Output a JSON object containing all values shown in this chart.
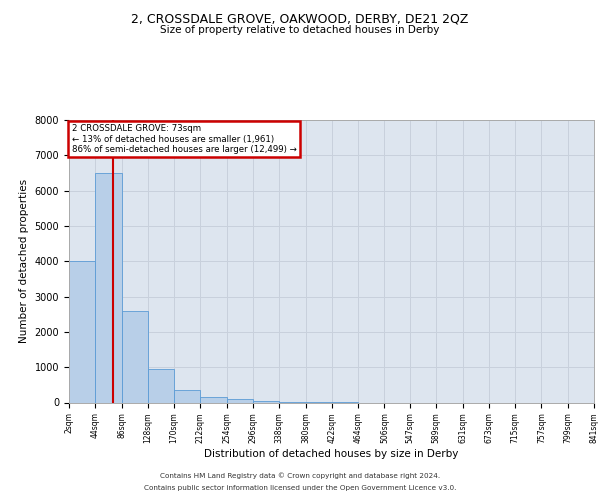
{
  "title": "2, CROSSDALE GROVE, OAKWOOD, DERBY, DE21 2QZ",
  "subtitle": "Size of property relative to detached houses in Derby",
  "xlabel": "Distribution of detached houses by size in Derby",
  "ylabel": "Number of detached properties",
  "bin_labels": [
    "2sqm",
    "44sqm",
    "86sqm",
    "128sqm",
    "170sqm",
    "212sqm",
    "254sqm",
    "296sqm",
    "338sqm",
    "380sqm",
    "422sqm",
    "464sqm",
    "506sqm",
    "547sqm",
    "589sqm",
    "631sqm",
    "673sqm",
    "715sqm",
    "757sqm",
    "799sqm",
    "841sqm"
  ],
  "bin_edges": [
    2,
    44,
    86,
    128,
    170,
    212,
    254,
    296,
    338,
    380,
    422,
    464,
    506,
    547,
    589,
    631,
    673,
    715,
    757,
    799,
    841
  ],
  "bar_heights": [
    4000,
    6500,
    2600,
    950,
    350,
    150,
    100,
    50,
    20,
    10,
    5,
    0,
    0,
    0,
    0,
    0,
    0,
    0,
    0,
    0
  ],
  "bar_color": "#b8cfe8",
  "bar_edge_color": "#5b9bd5",
  "grid_color": "#c8d0dc",
  "bg_color": "#dde5ef",
  "property_line_x": 73,
  "property_line_color": "#cc0000",
  "annotation_text": "2 CROSSDALE GROVE: 73sqm\n← 13% of detached houses are smaller (1,961)\n86% of semi-detached houses are larger (12,499) →",
  "annotation_box_color": "#cc0000",
  "ylim": [
    0,
    8000
  ],
  "yticks": [
    0,
    1000,
    2000,
    3000,
    4000,
    5000,
    6000,
    7000,
    8000
  ],
  "footer_line1": "Contains HM Land Registry data © Crown copyright and database right 2024.",
  "footer_line2": "Contains public sector information licensed under the Open Government Licence v3.0."
}
